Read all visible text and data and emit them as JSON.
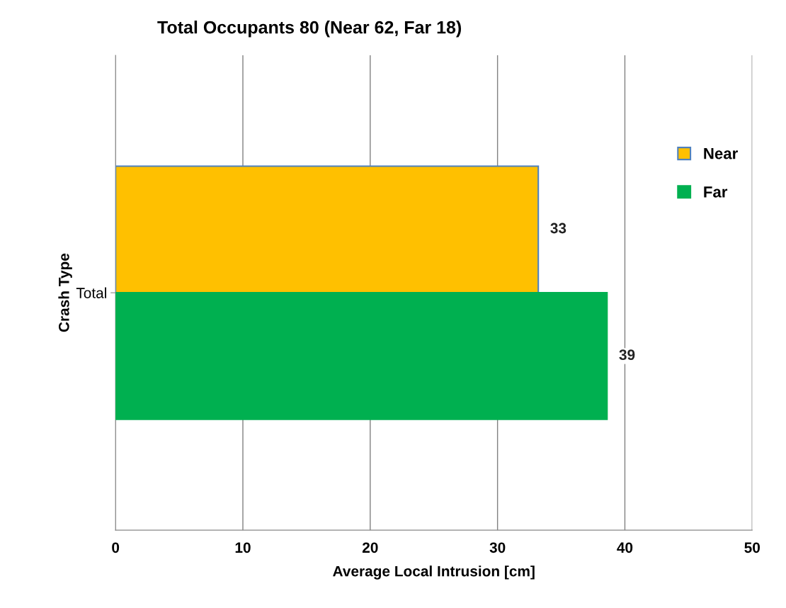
{
  "chart_data": {
    "type": "bar",
    "orientation": "horizontal",
    "title": "Total Occupants 80 (Near 62, Far 18)",
    "xlabel": "Average Local Intrusion [cm]",
    "ylabel": "Crash Type",
    "categories": [
      "Total"
    ],
    "series": [
      {
        "name": "Near",
        "color": "#ffc000",
        "values": [
          33.2
        ],
        "value_labels": [
          "33"
        ]
      },
      {
        "name": "Far",
        "color": "#00b050",
        "values": [
          38.6
        ],
        "value_labels": [
          "39"
        ]
      }
    ],
    "xlim": [
      0,
      50
    ],
    "xticks": [
      0,
      10,
      20,
      30,
      40,
      50
    ],
    "grid": "x",
    "legend": "right"
  }
}
